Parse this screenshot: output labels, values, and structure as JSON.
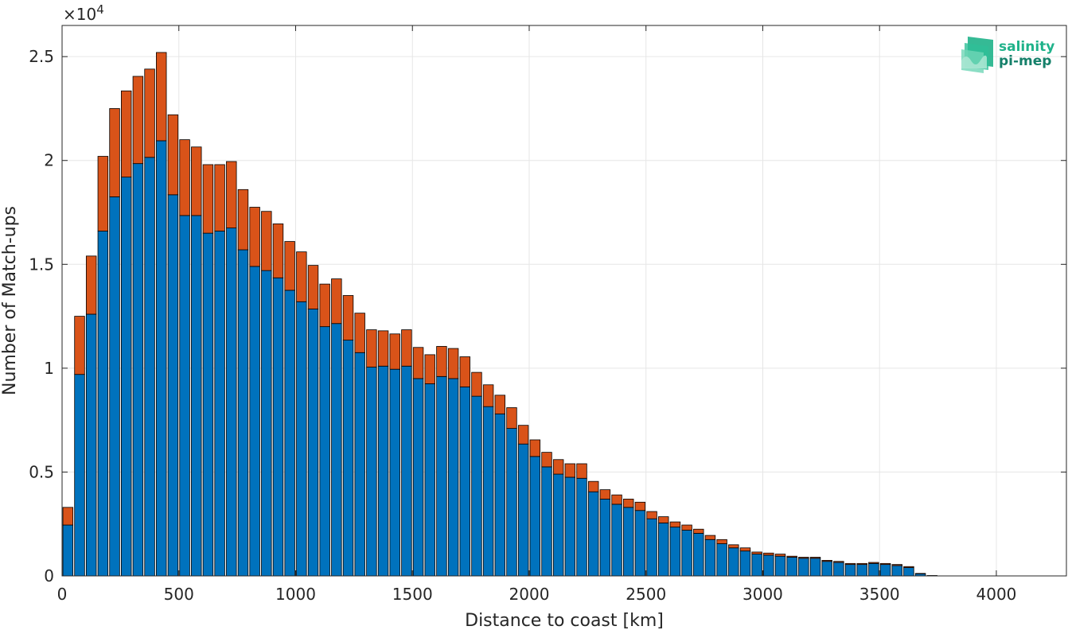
{
  "chart_data": {
    "type": "bar",
    "stacked": true,
    "xlabel": "Distance to coast [km]",
    "ylabel": "Number of Match-ups",
    "y_exponent_label": "×10",
    "y_exponent_power": "4",
    "xlim": [
      0,
      4300
    ],
    "ylim": [
      0,
      26500
    ],
    "grid": true,
    "x_ticks": [
      0,
      500,
      1000,
      1500,
      2000,
      2500,
      3000,
      3500,
      4000
    ],
    "x_tick_labels": [
      "0",
      "500",
      "1000",
      "1500",
      "2000",
      "2500",
      "3000",
      "3500",
      "4000"
    ],
    "y_ticks": [
      0,
      5000,
      10000,
      15000,
      20000,
      25000
    ],
    "y_tick_labels": [
      "0",
      "0.5",
      "1",
      "1.5",
      "2",
      "2.5"
    ],
    "bin_width": 50,
    "x": [
      25,
      75,
      125,
      175,
      225,
      275,
      325,
      375,
      425,
      475,
      525,
      575,
      625,
      675,
      725,
      775,
      825,
      875,
      925,
      975,
      1025,
      1075,
      1125,
      1175,
      1225,
      1275,
      1325,
      1375,
      1425,
      1475,
      1525,
      1575,
      1625,
      1675,
      1725,
      1775,
      1825,
      1875,
      1925,
      1975,
      2025,
      2075,
      2125,
      2175,
      2225,
      2275,
      2325,
      2375,
      2425,
      2475,
      2525,
      2575,
      2625,
      2675,
      2725,
      2775,
      2825,
      2875,
      2925,
      2975,
      3025,
      3075,
      3125,
      3175,
      3225,
      3275,
      3325,
      3375,
      3425,
      3475,
      3525,
      3575,
      3625,
      3675,
      3725
    ],
    "series": [
      {
        "color": "#0072bd",
        "values": [
          2450,
          9700,
          12600,
          16600,
          18250,
          19200,
          19850,
          20150,
          20950,
          18350,
          17350,
          17350,
          16500,
          16600,
          16750,
          15700,
          14900,
          14700,
          14350,
          13750,
          13200,
          12850,
          12000,
          12150,
          11350,
          10750,
          10050,
          10100,
          9950,
          10100,
          9500,
          9250,
          9600,
          9500,
          9100,
          8650,
          8150,
          7800,
          7100,
          6350,
          5750,
          5250,
          4900,
          4750,
          4700,
          4050,
          3700,
          3450,
          3300,
          3150,
          2750,
          2550,
          2350,
          2200,
          2050,
          1750,
          1550,
          1350,
          1200,
          1050,
          1000,
          950,
          900,
          850,
          850,
          700,
          650,
          550,
          550,
          600,
          550,
          500,
          400,
          100,
          20
        ]
      },
      {
        "color": "#d95319",
        "values": [
          850,
          2800,
          2800,
          3600,
          4250,
          4150,
          4200,
          4250,
          4250,
          3850,
          3650,
          3300,
          3300,
          3200,
          3200,
          2900,
          2850,
          2850,
          2600,
          2350,
          2400,
          2100,
          2050,
          2150,
          2150,
          1900,
          1800,
          1700,
          1700,
          1750,
          1500,
          1400,
          1450,
          1450,
          1450,
          1150,
          1050,
          900,
          1000,
          900,
          800,
          700,
          700,
          650,
          700,
          500,
          450,
          450,
          400,
          400,
          350,
          300,
          250,
          250,
          200,
          200,
          200,
          150,
          150,
          100,
          100,
          100,
          50,
          50,
          50,
          50,
          50,
          50,
          50,
          50,
          50,
          50,
          50,
          20,
          0
        ]
      }
    ]
  },
  "logo": {
    "line1": "salinity",
    "line2": "pi-mep",
    "color1": "#1fb28a",
    "color2": "#15806a"
  },
  "colors": {
    "bar_edge": "#000000",
    "grid": "#e6e6e6",
    "axis": "#262626"
  }
}
